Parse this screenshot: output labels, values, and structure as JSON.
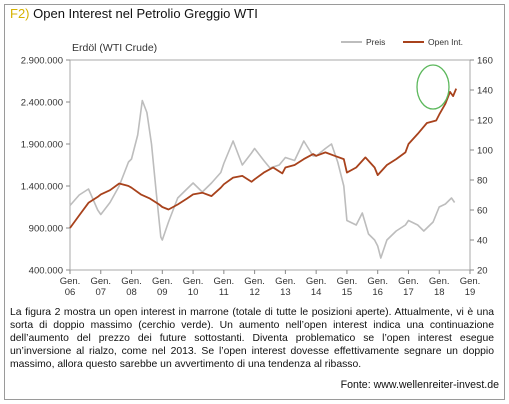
{
  "header": {
    "code": "F2)",
    "title": "Open Interest nel Petrolio Greggio WTI"
  },
  "caption": "La figura 2 mostra un open interest in marrone (totale di tutte le posizioni aperte). Attualmente, vi è una sorta di doppio massimo (cerchio verde). Un aumento nell’open interest indica una continuazione dell’aumento del prezzo dei future sottostanti. Diventa problematico se l’open interest esegue un’inversione al rialzo, come nel 2013. Se l’open interest dovesse effettivamente segnare un doppio massimo, allora questo sarebbe un avvertimento di una tendenza al ribasso.",
  "source": "Fonte: www.wellenreiter-invest.de",
  "colors": {
    "price": "#bdbdbd",
    "open_interest": "#a8421c",
    "highlight_circle": "#5cb85c",
    "title_code": "#d6b200"
  },
  "chart_data": {
    "type": "line",
    "subtitle": "Erdöl (WTI Crude)",
    "legend_position": "top-right",
    "grid": false,
    "x_tick_labels": [
      [
        "Gen.",
        "06"
      ],
      [
        "Gen.",
        "07"
      ],
      [
        "Gen.",
        "08"
      ],
      [
        "Gen.",
        "09"
      ],
      [
        "Gen.",
        "10"
      ],
      [
        "Gen.",
        "11"
      ],
      [
        "Gen.",
        "12"
      ],
      [
        "Gen.",
        "13"
      ],
      [
        "Gen.",
        "14"
      ],
      [
        "Gen.",
        "15"
      ],
      [
        "Gen.",
        "16"
      ],
      [
        "Gen.",
        "17"
      ],
      [
        "Gen.",
        "18"
      ],
      [
        "Gen.",
        "19"
      ]
    ],
    "xlim": [
      2006.0,
      2019.0
    ],
    "y_left": {
      "tick_labels": [
        "2.900.000",
        "2.400.000",
        "1.900.000",
        "1.400.000",
        "900.000",
        "400.000"
      ],
      "ticks": [
        2900000,
        2400000,
        1900000,
        1400000,
        900000,
        400000
      ],
      "lim": [
        400000,
        2900000
      ]
    },
    "y_right": {
      "tick_labels": [
        "160",
        "140",
        "120",
        "100",
        "80",
        "60",
        "40",
        "20"
      ],
      "ticks": [
        160,
        140,
        120,
        100,
        80,
        60,
        40,
        20
      ],
      "lim": [
        20,
        160
      ]
    },
    "series": [
      {
        "name": "Preis",
        "axis": "right",
        "x": [
          2006.0,
          2006.3,
          2006.6,
          2006.9,
          2007.0,
          2007.3,
          2007.6,
          2007.9,
          2008.0,
          2008.2,
          2008.35,
          2008.5,
          2008.65,
          2008.8,
          2008.95,
          2009.0,
          2009.2,
          2009.5,
          2009.8,
          2010.0,
          2010.3,
          2010.6,
          2010.9,
          2011.0,
          2011.3,
          2011.6,
          2011.9,
          2012.0,
          2012.3,
          2012.5,
          2012.8,
          2013.0,
          2013.3,
          2013.6,
          2013.9,
          2014.0,
          2014.3,
          2014.5,
          2014.7,
          2014.9,
          2015.0,
          2015.3,
          2015.5,
          2015.7,
          2015.9,
          2016.0,
          2016.1,
          2016.3,
          2016.6,
          2016.9,
          2017.0,
          2017.3,
          2017.5,
          2017.8,
          2018.0,
          2018.2,
          2018.4,
          2018.5
        ],
        "y": [
          63,
          70,
          74,
          60,
          57,
          65,
          76,
          92,
          94,
          110,
          133,
          125,
          104,
          72,
          42,
          40,
          52,
          68,
          74,
          78,
          72,
          78,
          85,
          91,
          106,
          90,
          98,
          101,
          93,
          88,
          90,
          95,
          93,
          106,
          96,
          96,
          101,
          104,
          92,
          76,
          53,
          50,
          58,
          44,
          40,
          36,
          28,
          40,
          46,
          50,
          53,
          50,
          46,
          52,
          62,
          64,
          68,
          65
        ]
      },
      {
        "name": "Open Int.",
        "axis": "left",
        "x": [
          2006.0,
          2006.3,
          2006.6,
          2006.9,
          2007.0,
          2007.3,
          2007.6,
          2007.9,
          2008.0,
          2008.3,
          2008.6,
          2008.9,
          2009.0,
          2009.2,
          2009.5,
          2009.8,
          2010.0,
          2010.3,
          2010.6,
          2010.9,
          2011.0,
          2011.3,
          2011.6,
          2011.9,
          2012.0,
          2012.3,
          2012.6,
          2012.9,
          2013.0,
          2013.3,
          2013.6,
          2013.9,
          2014.0,
          2014.3,
          2014.6,
          2014.9,
          2015.0,
          2015.3,
          2015.6,
          2015.9,
          2016.0,
          2016.3,
          2016.6,
          2016.9,
          2017.0,
          2017.3,
          2017.6,
          2017.9,
          2018.0,
          2018.2,
          2018.35,
          2018.45,
          2018.55
        ],
        "y": [
          900000,
          1050000,
          1200000,
          1270000,
          1300000,
          1350000,
          1430000,
          1400000,
          1380000,
          1300000,
          1250000,
          1180000,
          1150000,
          1120000,
          1180000,
          1250000,
          1300000,
          1320000,
          1280000,
          1380000,
          1420000,
          1500000,
          1520000,
          1450000,
          1480000,
          1560000,
          1620000,
          1550000,
          1620000,
          1650000,
          1720000,
          1780000,
          1760000,
          1800000,
          1760000,
          1720000,
          1560000,
          1620000,
          1740000,
          1620000,
          1530000,
          1650000,
          1720000,
          1800000,
          1900000,
          2020000,
          2150000,
          2180000,
          2250000,
          2380000,
          2520000,
          2470000,
          2560000
        ]
      }
    ]
  }
}
